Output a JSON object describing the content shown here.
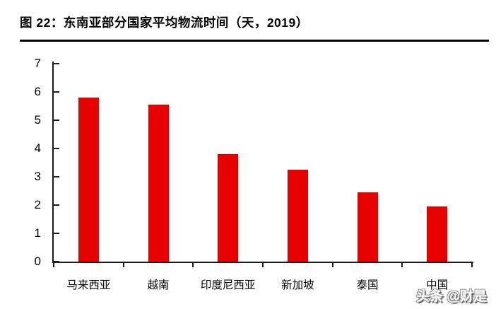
{
  "figure": {
    "title": "图 22：东南亚部分国家平均物流时间（天，2019）"
  },
  "watermark": {
    "text": "头条 @财是"
  },
  "chart_data": {
    "type": "bar",
    "title": "东南亚部分国家平均物流时间（天，2019）",
    "categories": [
      "马来西亚",
      "越南",
      "印度尼西亚",
      "新加坡",
      "泰国",
      "中国"
    ],
    "values": [
      5.8,
      5.55,
      3.8,
      3.25,
      2.45,
      1.95
    ],
    "xlabel": "",
    "ylabel": "",
    "ylim": [
      0,
      7
    ],
    "ytick_interval": 1,
    "yticks": [
      0,
      1,
      2,
      3,
      4,
      5,
      6,
      7
    ],
    "bar_color": "#e60000",
    "axis_color": "#1a1a1a",
    "grid": false,
    "legend_position": "none"
  }
}
